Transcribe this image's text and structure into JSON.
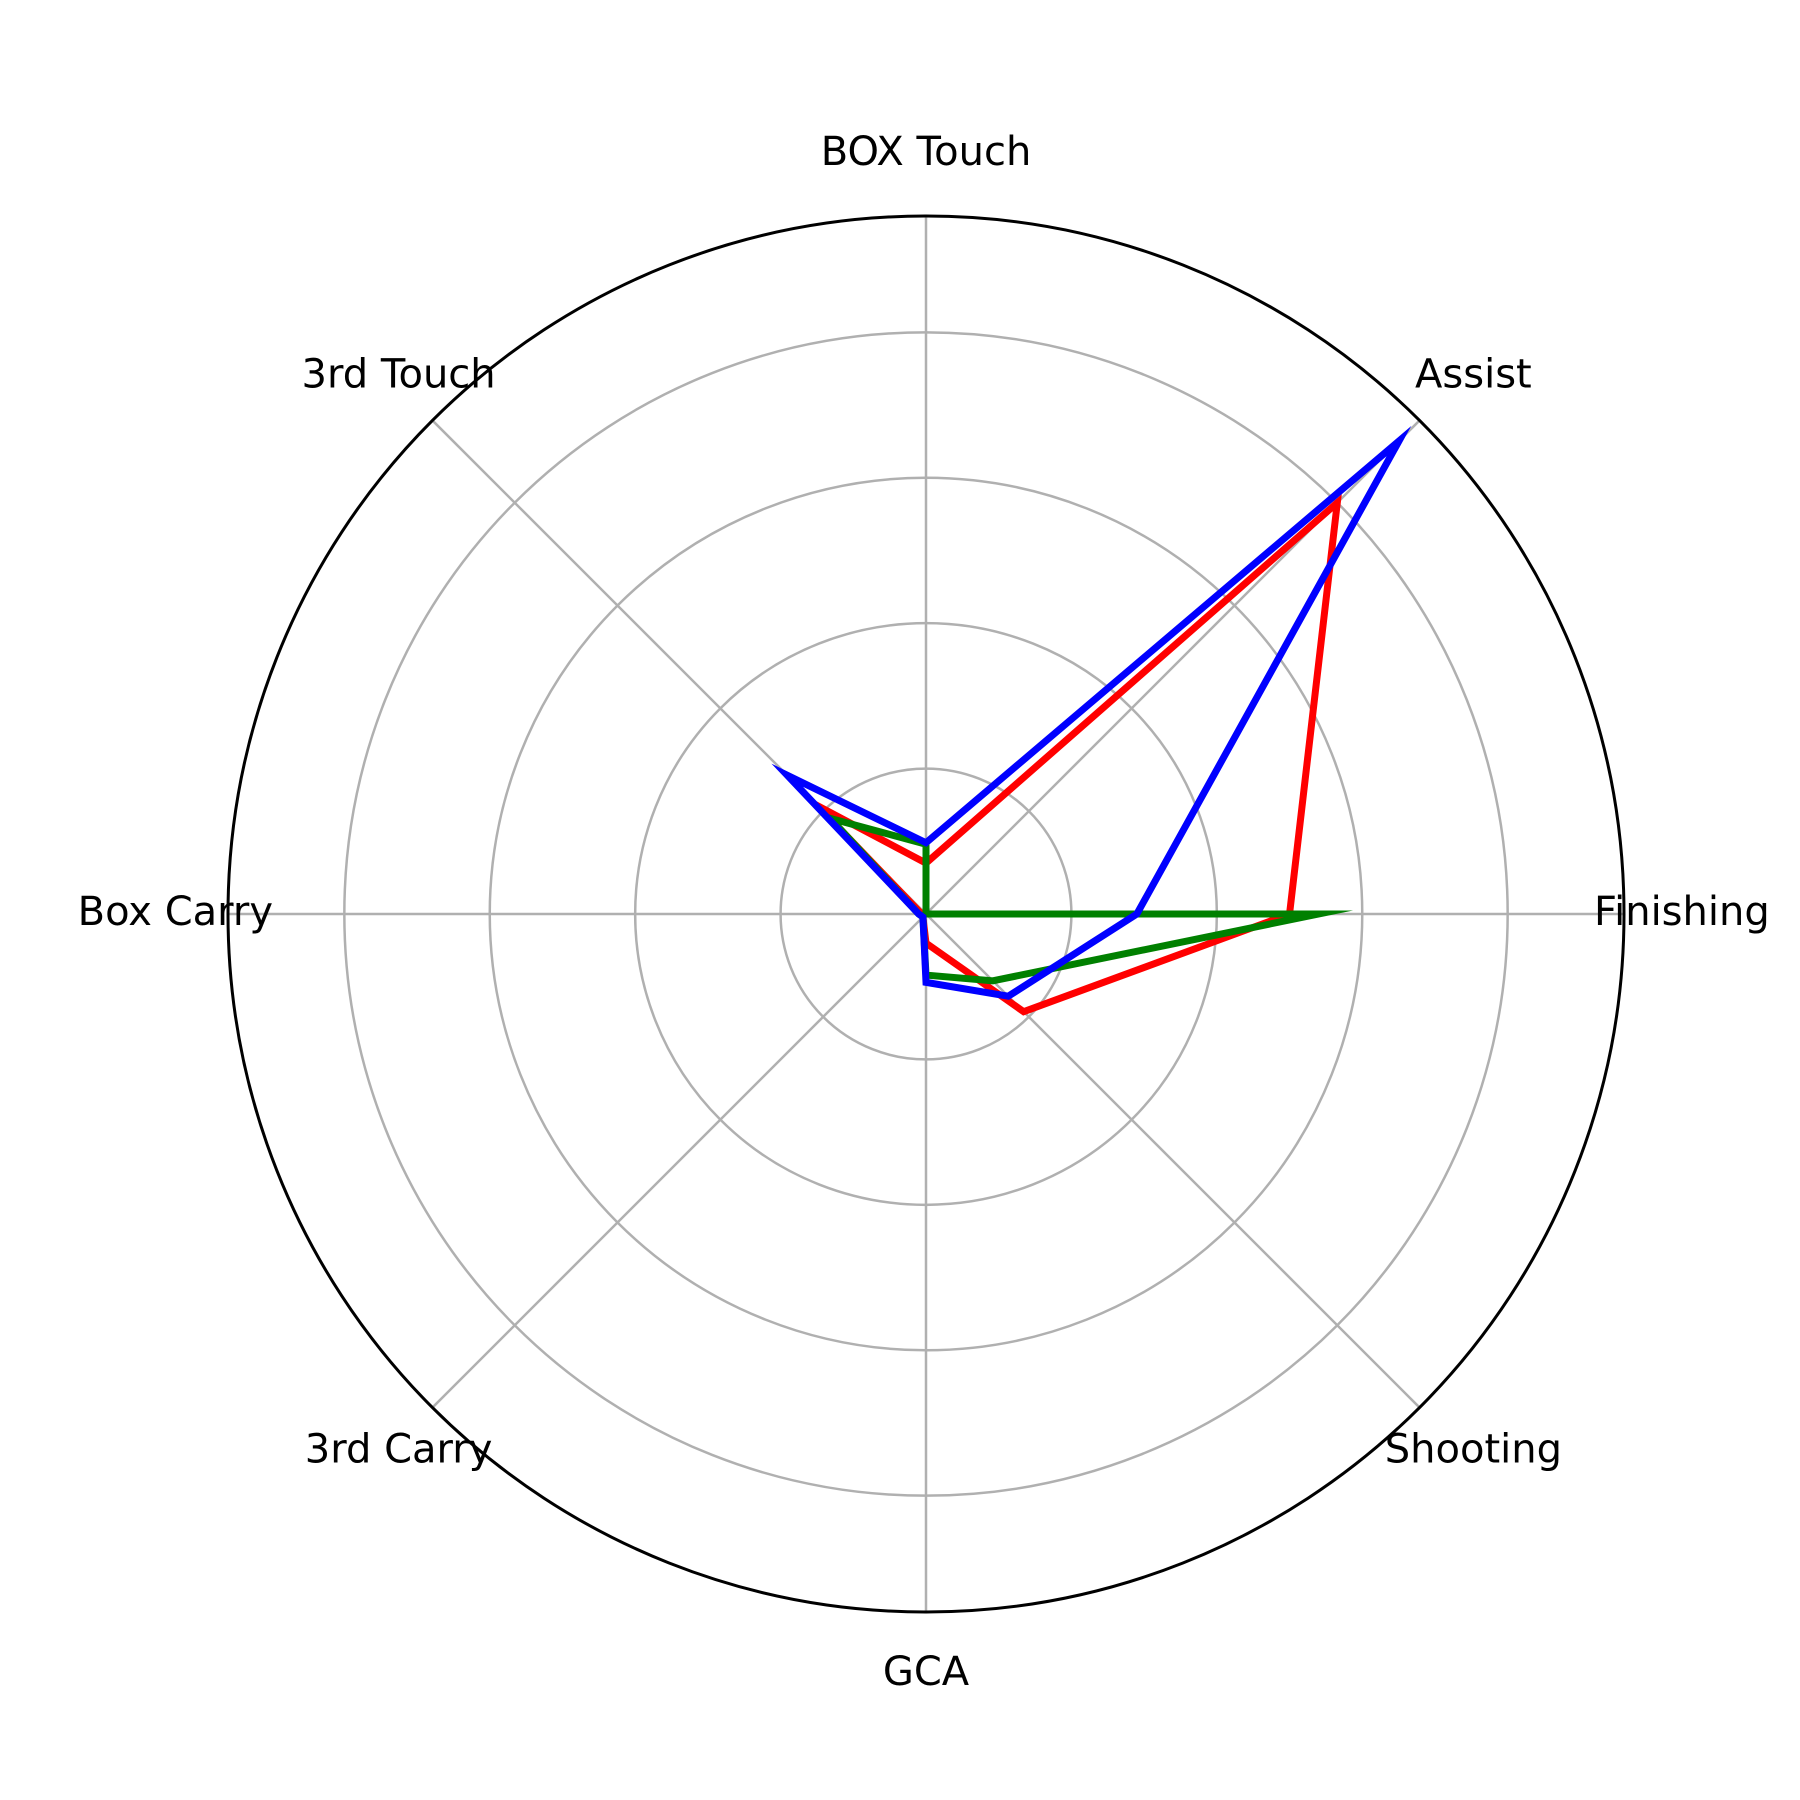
{
  "chart_data": {
    "type": "radar",
    "categories": [
      "Finishing",
      "Assist",
      "BOX Touch",
      "3rd Touch",
      "Box Carry",
      "3rd Carry",
      "GCA",
      "Shooting"
    ],
    "rlim": [
      0,
      4.8
    ],
    "rgrid": [
      1,
      2,
      3,
      4
    ],
    "grid": true,
    "legend": "none",
    "series": [
      {
        "color": "#ff0000",
        "values": [
          2.5,
          4.0,
          0.35,
          1.05,
          0.03,
          0.03,
          0.2,
          0.95
        ]
      },
      {
        "color": "#008000",
        "values": [
          2.7,
          0.0,
          0.48,
          0.93,
          0.05,
          0.03,
          0.42,
          0.65
        ]
      },
      {
        "color": "#0000ff",
        "values": [
          1.45,
          4.6,
          0.49,
          1.35,
          0.05,
          0.03,
          0.47,
          0.8
        ]
      }
    ]
  },
  "style": {
    "grid_color": "#b0b0b0",
    "frame_color": "#000000"
  }
}
